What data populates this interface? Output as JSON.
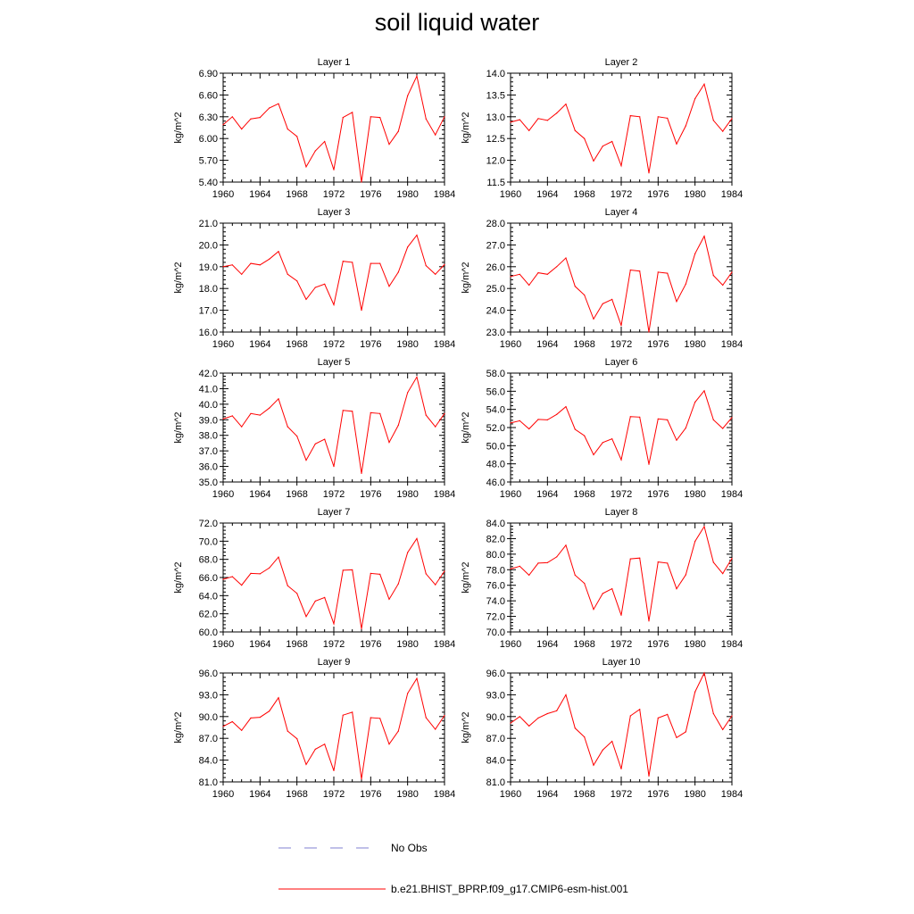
{
  "title": "soil liquid water",
  "legend": {
    "obs_label": "No Obs",
    "model_label": "b.e21.BHIST_BPRP.f09_g17.CMIP6-esm-hist.001",
    "obs_color": "#8080d0",
    "model_color": "#ff0000"
  },
  "chart_data": [
    {
      "type": "line",
      "title": "Layer 1",
      "ylabel": "kg/m^2",
      "xlim": [
        1960,
        1984
      ],
      "ylim": [
        5.4,
        6.9
      ],
      "yticks": [
        "6.90",
        "6.60",
        "6.30",
        "6.00",
        "5.70",
        "5.40"
      ],
      "xticks": [
        "1960",
        "1964",
        "1968",
        "1972",
        "1976",
        "1980",
        "1984"
      ],
      "x": [
        1960,
        1961,
        1962,
        1963,
        1964,
        1965,
        1966,
        1967,
        1968,
        1969,
        1970,
        1971,
        1972,
        1973,
        1974,
        1975,
        1976,
        1977,
        1978,
        1979,
        1980,
        1981,
        1982,
        1983,
        1984
      ],
      "series": [
        {
          "name": "b.e21.BHIST_BPRP.f09_g17.CMIP6-esm-hist.001",
          "values": [
            6.19,
            6.3,
            6.13,
            6.27,
            6.29,
            6.42,
            6.48,
            6.13,
            6.03,
            5.61,
            5.83,
            5.96,
            5.57,
            6.29,
            6.36,
            5.4,
            6.3,
            6.29,
            5.92,
            6.1,
            6.59,
            6.86,
            6.27,
            6.05,
            6.3
          ]
        }
      ]
    },
    {
      "type": "line",
      "title": "Layer 2",
      "ylabel": "kg/m^2",
      "xlim": [
        1960,
        1984
      ],
      "ylim": [
        11.0,
        14.0
      ],
      "yticks": [
        "14.0",
        "13.5",
        "13.0",
        "12.5",
        "12.0",
        "11.5"
      ],
      "xticks": [
        "1960",
        "1964",
        "1968",
        "1972",
        "1976",
        "1980",
        "1984"
      ],
      "x": [
        1960,
        1961,
        1962,
        1963,
        1964,
        1965,
        1966,
        1967,
        1968,
        1969,
        1970,
        1971,
        1972,
        1973,
        1974,
        1975,
        1976,
        1977,
        1978,
        1979,
        1980,
        1981,
        1982,
        1983,
        1984
      ],
      "series": [
        {
          "name": "b.e21.BHIST_BPRP.f09_g17.CMIP6-esm-hist.001",
          "values": [
            12.65,
            12.72,
            12.42,
            12.75,
            12.7,
            12.9,
            13.15,
            12.42,
            12.2,
            11.58,
            11.99,
            12.12,
            11.45,
            12.83,
            12.8,
            11.25,
            12.8,
            12.76,
            12.05,
            12.55,
            13.3,
            13.7,
            12.7,
            12.4,
            12.75
          ]
        }
      ]
    },
    {
      "type": "line",
      "title": "Layer 3",
      "ylabel": "kg/m^2",
      "xlim": [
        1960,
        1984
      ],
      "ylim": [
        16.0,
        21.0
      ],
      "yticks": [
        "21.0",
        "20.0",
        "19.0",
        "18.0",
        "17.0",
        "16.0"
      ],
      "xticks": [
        "1960",
        "1964",
        "1968",
        "1972",
        "1976",
        "1980",
        "1984"
      ],
      "x": [
        1960,
        1961,
        1962,
        1963,
        1964,
        1965,
        1966,
        1967,
        1968,
        1969,
        1970,
        1971,
        1972,
        1973,
        1974,
        1975,
        1976,
        1977,
        1978,
        1979,
        1980,
        1981,
        1982,
        1983,
        1984
      ],
      "series": [
        {
          "name": "b.e21.BHIST_BPRP.f09_g17.CMIP6-esm-hist.001",
          "values": [
            19.0,
            19.08,
            18.65,
            19.15,
            19.08,
            19.35,
            19.7,
            18.65,
            18.35,
            17.5,
            18.05,
            18.2,
            17.25,
            19.25,
            19.2,
            17.0,
            19.15,
            19.15,
            18.1,
            18.75,
            19.9,
            20.45,
            19.05,
            18.65,
            19.1
          ]
        }
      ]
    },
    {
      "type": "line",
      "title": "Layer 4",
      "ylabel": "kg/m^2",
      "xlim": [
        1960,
        1984
      ],
      "ylim": [
        23.0,
        28.0
      ],
      "yticks": [
        "28.0",
        "27.0",
        "26.0",
        "25.0",
        "24.0",
        "23.0"
      ],
      "xticks": [
        "1960",
        "1964",
        "1968",
        "1972",
        "1976",
        "1980",
        "1984"
      ],
      "x": [
        1960,
        1961,
        1962,
        1963,
        1964,
        1965,
        1966,
        1967,
        1968,
        1969,
        1970,
        1971,
        1972,
        1973,
        1974,
        1975,
        1976,
        1977,
        1978,
        1979,
        1980,
        1981,
        1982,
        1983,
        1984
      ],
      "series": [
        {
          "name": "b.e21.BHIST_BPRP.f09_g17.CMIP6-esm-hist.001",
          "values": [
            25.55,
            25.65,
            25.15,
            25.72,
            25.65,
            26.0,
            26.4,
            25.1,
            24.7,
            23.6,
            24.3,
            24.5,
            23.3,
            25.85,
            25.8,
            23.0,
            25.75,
            25.7,
            24.4,
            25.2,
            26.6,
            27.4,
            25.6,
            25.15,
            25.75
          ]
        }
      ]
    },
    {
      "type": "line",
      "title": "Layer 5",
      "ylabel": "kg/m^2",
      "xlim": [
        1960,
        1984
      ],
      "ylim": [
        35.0,
        42.0
      ],
      "yticks": [
        "42.0",
        "41.0",
        "40.0",
        "39.0",
        "38.0",
        "37.0",
        "36.0",
        "35.0"
      ],
      "xticks": [
        "1960",
        "1964",
        "1968",
        "1972",
        "1976",
        "1980",
        "1984"
      ],
      "x": [
        1960,
        1961,
        1962,
        1963,
        1964,
        1965,
        1966,
        1967,
        1968,
        1969,
        1970,
        1971,
        1972,
        1973,
        1974,
        1975,
        1976,
        1977,
        1978,
        1979,
        1980,
        1981,
        1982,
        1983,
        1984
      ],
      "series": [
        {
          "name": "b.e21.BHIST_BPRP.f09_g17.CMIP6-esm-hist.001",
          "values": [
            39.05,
            39.25,
            38.55,
            39.4,
            39.3,
            39.75,
            40.35,
            38.55,
            37.95,
            36.4,
            37.45,
            37.75,
            36.0,
            39.6,
            39.55,
            35.55,
            39.45,
            39.4,
            37.55,
            38.65,
            40.75,
            41.75,
            39.3,
            38.55,
            39.4
          ]
        }
      ]
    },
    {
      "type": "line",
      "title": "Layer 6",
      "ylabel": "kg/m^2",
      "xlim": [
        1960,
        1984
      ],
      "ylim": [
        46.0,
        58.0
      ],
      "yticks": [
        "58.0",
        "56.0",
        "54.0",
        "52.0",
        "50.0",
        "48.0",
        "46.0"
      ],
      "xticks": [
        "1960",
        "1964",
        "1968",
        "1972",
        "1976",
        "1980",
        "1984"
      ],
      "x": [
        1960,
        1961,
        1962,
        1963,
        1964,
        1965,
        1966,
        1967,
        1968,
        1969,
        1970,
        1971,
        1972,
        1973,
        1974,
        1975,
        1976,
        1977,
        1978,
        1979,
        1980,
        1981,
        1982,
        1983,
        1984
      ],
      "series": [
        {
          "name": "b.e21.BHIST_BPRP.f09_g17.CMIP6-esm-hist.001",
          "values": [
            52.5,
            52.75,
            51.85,
            52.9,
            52.85,
            53.45,
            54.3,
            51.8,
            51.1,
            49.0,
            50.35,
            50.75,
            48.45,
            53.2,
            53.15,
            47.95,
            52.95,
            52.85,
            50.6,
            51.95,
            54.8,
            56.05,
            52.85,
            51.9,
            53.1
          ]
        }
      ]
    },
    {
      "type": "line",
      "title": "Layer 7",
      "ylabel": "kg/m^2",
      "xlim": [
        1960,
        1984
      ],
      "ylim": [
        60.0,
        72.0
      ],
      "yticks": [
        "72.0",
        "70.0",
        "68.0",
        "66.0",
        "64.0",
        "62.0",
        "60.0"
      ],
      "xticks": [
        "1960",
        "1964",
        "1968",
        "1972",
        "1976",
        "1980",
        "1984"
      ],
      "x": [
        1960,
        1961,
        1962,
        1963,
        1964,
        1965,
        1966,
        1967,
        1968,
        1969,
        1970,
        1971,
        1972,
        1973,
        1974,
        1975,
        1976,
        1977,
        1978,
        1979,
        1980,
        1981,
        1982,
        1983,
        1984
      ],
      "series": [
        {
          "name": "b.e21.BHIST_BPRP.f09_g17.CMIP6-esm-hist.001",
          "values": [
            65.8,
            66.1,
            65.15,
            66.45,
            66.4,
            67.05,
            68.25,
            65.1,
            64.25,
            61.7,
            63.4,
            63.8,
            60.9,
            66.8,
            66.85,
            60.35,
            66.45,
            66.35,
            63.6,
            65.3,
            68.75,
            70.3,
            66.4,
            65.2,
            66.7
          ]
        }
      ]
    },
    {
      "type": "line",
      "title": "Layer 8",
      "ylabel": "kg/m^2",
      "xlim": [
        1960,
        1984
      ],
      "ylim": [
        70.0,
        84.0
      ],
      "yticks": [
        "84.0",
        "82.0",
        "80.0",
        "78.0",
        "76.0",
        "74.0",
        "72.0",
        "70.0"
      ],
      "xticks": [
        "1960",
        "1964",
        "1968",
        "1972",
        "1976",
        "1980",
        "1984"
      ],
      "x": [
        1960,
        1961,
        1962,
        1963,
        1964,
        1965,
        1966,
        1967,
        1968,
        1969,
        1970,
        1971,
        1972,
        1973,
        1974,
        1975,
        1976,
        1977,
        1978,
        1979,
        1980,
        1981,
        1982,
        1983,
        1984
      ],
      "series": [
        {
          "name": "b.e21.BHIST_BPRP.f09_g17.CMIP6-esm-hist.001",
          "values": [
            78.1,
            78.45,
            77.3,
            78.85,
            78.9,
            79.65,
            81.15,
            77.3,
            76.25,
            72.9,
            74.95,
            75.55,
            72.15,
            79.4,
            79.5,
            71.4,
            79.0,
            78.85,
            75.55,
            77.35,
            81.65,
            83.55,
            78.95,
            77.5,
            79.45
          ]
        }
      ]
    },
    {
      "type": "line",
      "title": "Layer 9",
      "ylabel": "kg/m^2",
      "xlim": [
        1960,
        1984
      ],
      "ylim": [
        81.0,
        96.0
      ],
      "yticks": [
        "96.0",
        "93.0",
        "90.0",
        "87.0",
        "84.0",
        "81.0"
      ],
      "xticks": [
        "1960",
        "1964",
        "1968",
        "1972",
        "1976",
        "1980",
        "1984"
      ],
      "x": [
        1960,
        1961,
        1962,
        1963,
        1964,
        1965,
        1966,
        1967,
        1968,
        1969,
        1970,
        1971,
        1972,
        1973,
        1974,
        1975,
        1976,
        1977,
        1978,
        1979,
        1980,
        1981,
        1982,
        1983,
        1984
      ],
      "series": [
        {
          "name": "b.e21.BHIST_BPRP.f09_g17.CMIP6-esm-hist.001",
          "values": [
            88.65,
            89.3,
            88.1,
            89.8,
            89.9,
            90.75,
            92.6,
            88.0,
            86.95,
            83.4,
            85.5,
            86.2,
            82.55,
            90.2,
            90.6,
            81.4,
            89.85,
            89.75,
            86.2,
            88.0,
            93.2,
            95.25,
            89.85,
            88.25,
            90.15
          ]
        }
      ]
    },
    {
      "type": "line",
      "title": "Layer 10",
      "ylabel": "kg/m^2",
      "xlim": [
        1960,
        1984
      ],
      "ylim": [
        81.0,
        96.0
      ],
      "yticks": [
        "96.0",
        "93.0",
        "90.0",
        "87.0",
        "84.0",
        "81.0"
      ],
      "xticks": [
        "1960",
        "1964",
        "1968",
        "1972",
        "1976",
        "1980",
        "1984"
      ],
      "x": [
        1960,
        1961,
        1962,
        1963,
        1964,
        1965,
        1966,
        1967,
        1968,
        1969,
        1970,
        1971,
        1972,
        1973,
        1974,
        1975,
        1976,
        1977,
        1978,
        1979,
        1980,
        1981,
        1982,
        1983,
        1984
      ],
      "series": [
        {
          "name": "b.e21.BHIST_BPRP.f09_g17.CMIP6-esm-hist.001",
          "values": [
            89.1,
            90.0,
            88.7,
            89.8,
            90.4,
            90.8,
            93.0,
            88.4,
            87.2,
            83.3,
            85.4,
            86.6,
            82.8,
            90.1,
            91.0,
            81.8,
            89.8,
            90.3,
            87.1,
            87.9,
            93.4,
            96.0,
            90.4,
            88.2,
            90.1
          ]
        }
      ]
    }
  ]
}
